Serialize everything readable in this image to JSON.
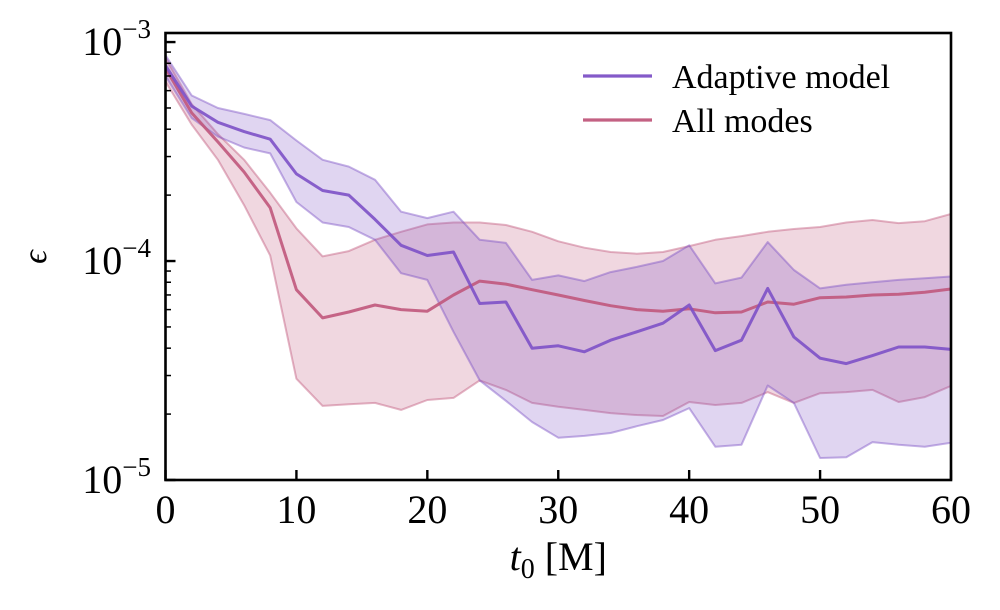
{
  "chart_data": {
    "type": "line",
    "title": "",
    "xlabel": {
      "symbol": "t",
      "subscript": "0",
      "unit": " [M]"
    },
    "ylabel": "ϵ",
    "x_axis": {
      "min": 0,
      "max": 60,
      "major_ticks": [
        0,
        10,
        20,
        30,
        40,
        50,
        60
      ],
      "tick_labels": [
        "0",
        "10",
        "20",
        "30",
        "40",
        "50",
        "60"
      ]
    },
    "y_axis": {
      "scale": "log",
      "min": 1e-05,
      "max": 0.0011,
      "major_ticks": [
        {
          "value": 0.001,
          "main": "10",
          "exp": "−3"
        },
        {
          "value": 0.0001,
          "main": "10",
          "exp": "−4"
        },
        {
          "value": 1e-05,
          "main": "10",
          "exp": "−5"
        }
      ],
      "minor_ticks": true
    },
    "grid": false,
    "legend": {
      "position": "upper right",
      "entries": [
        {
          "label": "Adaptive model",
          "color": "#7d51c6"
        },
        {
          "label": "All modes",
          "color": "#c0587c"
        }
      ]
    },
    "x": [
      0,
      2,
      4,
      6,
      8,
      10,
      12,
      14,
      16,
      18,
      20,
      22,
      24,
      26,
      28,
      30,
      32,
      34,
      36,
      38,
      40,
      42,
      44,
      46,
      48,
      50,
      52,
      54,
      56,
      58,
      60
    ],
    "series": [
      {
        "name": "Adaptive model",
        "color": "#7d51c6",
        "mean": [
          0.00078,
          0.00051,
          0.00043,
          0.00039,
          0.00036,
          0.00025,
          0.00021,
          0.0002,
          0.000155,
          0.000118,
          0.000106,
          0.00011,
          6.4e-05,
          6.5e-05,
          4e-05,
          4.1e-05,
          3.85e-05,
          4.35e-05,
          4.75e-05,
          5.2e-05,
          6.3e-05,
          3.9e-05,
          4.35e-05,
          7.5e-05,
          4.5e-05,
          3.6e-05,
          3.4e-05,
          3.7e-05,
          4.05e-05,
          4.05e-05,
          3.95e-05
        ],
        "band_upper": [
          0.00087,
          0.00057,
          0.0005,
          0.00047,
          0.00044,
          0.000355,
          0.00029,
          0.00027,
          0.000235,
          0.000168,
          0.000157,
          0.000168,
          0.000125,
          0.000121,
          8.2e-05,
          8.6e-05,
          8.1e-05,
          8.9e-05,
          9.4e-05,
          0.0001,
          0.000118,
          7.9e-05,
          8.4e-05,
          0.000122,
          9.1e-05,
          7.5e-05,
          7.8e-05,
          8e-05,
          8.2e-05,
          8.35e-05,
          8.5e-05
        ],
        "band_lower": [
          0.0007,
          0.00045,
          0.00037,
          0.00033,
          0.00031,
          0.000186,
          0.00015,
          0.000143,
          0.000125,
          8.8e-05,
          8.2e-05,
          4.75e-05,
          2.85e-05,
          2.3e-05,
          1.84e-05,
          1.56e-05,
          1.59e-05,
          1.64e-05,
          1.76e-05,
          1.88e-05,
          2.13e-05,
          1.42e-05,
          1.45e-05,
          2.7e-05,
          2.25e-05,
          1.26e-05,
          1.27e-05,
          1.49e-05,
          1.45e-05,
          1.42e-05,
          1.48e-05
        ]
      },
      {
        "name": "All modes",
        "color": "#c0587c",
        "mean": [
          0.00076,
          0.000475,
          0.00035,
          0.000255,
          0.000175,
          7.4e-05,
          5.5e-05,
          5.85e-05,
          6.3e-05,
          6e-05,
          5.9e-05,
          7e-05,
          8.1e-05,
          7.85e-05,
          7.4e-05,
          7e-05,
          6.6e-05,
          6.25e-05,
          6e-05,
          5.9e-05,
          6.05e-05,
          5.8e-05,
          5.85e-05,
          6.5e-05,
          6.35e-05,
          6.8e-05,
          6.85e-05,
          7e-05,
          7.05e-05,
          7.2e-05,
          7.45e-05
        ],
        "band_upper": [
          0.00085,
          0.00052,
          0.00038,
          0.00029,
          0.000205,
          0.000141,
          0.000105,
          0.000111,
          0.000125,
          0.000136,
          0.000147,
          0.00015,
          0.00015,
          0.000146,
          0.000136,
          0.000123,
          0.000115,
          0.00011,
          0.000108,
          0.00011,
          0.000117,
          0.000125,
          0.00013,
          0.000136,
          0.00014,
          0.000143,
          0.00015,
          0.000154,
          0.000149,
          0.000152,
          0.000164
        ],
        "band_lower": [
          0.00066,
          0.00042,
          0.00029,
          0.00018,
          0.000106,
          2.9e-05,
          2.18e-05,
          2.22e-05,
          2.25e-05,
          2.09e-05,
          2.32e-05,
          2.37e-05,
          2.85e-05,
          2.58e-05,
          2.25e-05,
          2.16e-05,
          2.09e-05,
          2.02e-05,
          1.98e-05,
          1.96e-05,
          2.27e-05,
          2.2e-05,
          2.25e-05,
          2.52e-05,
          2.25e-05,
          2.49e-05,
          2.52e-05,
          2.58e-05,
          2.27e-05,
          2.39e-05,
          2.69e-05
        ]
      }
    ],
    "style": {
      "band_fill_opacity": 0.24,
      "band_edge_opacity": 0.45,
      "band_edge_width": 2,
      "line_width": 3,
      "line_opacity": 0.9,
      "spine_color": "#000000",
      "spine_width": 2.6
    }
  }
}
